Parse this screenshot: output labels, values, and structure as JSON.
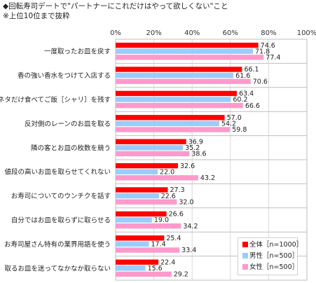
{
  "title": "◆回転寿司デートで\"パートナーにこれだけはやって欲しくない\"こと",
  "subtitle": "※上位10位まで抜粋",
  "chart_data": {
    "type": "bar",
    "orientation": "horizontal",
    "categories": [
      "一度取ったお皿を戻す",
      "香の強い香水をつけて入店する",
      "ネタだけ食べてご飯［シャリ］を残す",
      "反対側のレーンのお皿を取る",
      "隣の客とお皿の枚数を競う",
      "値段の高いお皿を取らせてくれない",
      "お寿司についてのウンチクを話す",
      "自分ではお皿を取らずに取らせる",
      "お寿司屋さん特有の業界用語を使う",
      "取るお皿を迷ってなかなか取らない"
    ],
    "series": [
      {
        "name": "全体［n=1000］",
        "color": "#ff0000",
        "values": [
          74.6,
          66.1,
          63.4,
          57.0,
          36.9,
          32.6,
          27.3,
          26.6,
          25.4,
          22.4
        ]
      },
      {
        "name": "男性［n=500］",
        "color": "#99ccff",
        "values": [
          71.8,
          61.6,
          60.2,
          54.2,
          35.2,
          22.0,
          22.6,
          19.0,
          17.4,
          15.6
        ]
      },
      {
        "name": "女性［n=500］",
        "color": "#ff99cc",
        "values": [
          77.4,
          70.6,
          66.6,
          59.8,
          38.6,
          43.2,
          32.0,
          34.2,
          33.4,
          29.2
        ]
      }
    ],
    "xlim": [
      0,
      100
    ],
    "xticks": [
      "0%",
      "20%",
      "40%",
      "60%",
      "80%",
      "100%"
    ],
    "grid": true,
    "legend_position": "bottom-right"
  }
}
